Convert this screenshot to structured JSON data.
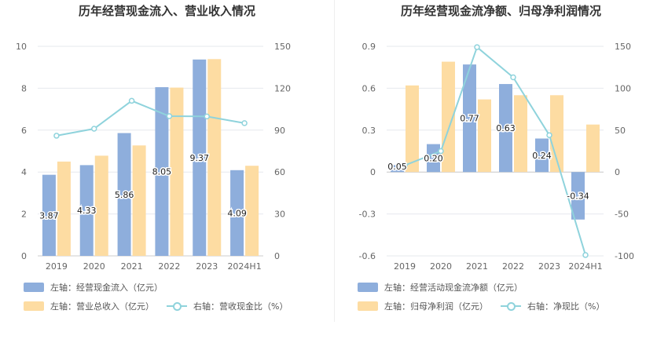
{
  "colors": {
    "bar_blue": "#8eaedc",
    "bar_orange": "#fddca2",
    "line_cyan": "#8fd3dc",
    "grid": "#e6e8ee",
    "axis_text": "#666666"
  },
  "chart_data": [
    {
      "type": "bar+line",
      "title": "历年经营现金流入、营业收入情况",
      "categories": [
        "2019",
        "2020",
        "2021",
        "2022",
        "2023",
        "2024H1"
      ],
      "left_axis": {
        "ticks": [
          "0",
          "2",
          "4",
          "6",
          "8",
          "10"
        ],
        "range": [
          0,
          10
        ]
      },
      "right_axis": {
        "ticks": [
          "0",
          "30",
          "60",
          "90",
          "120",
          "150"
        ],
        "range": [
          0,
          150
        ]
      },
      "series": [
        {
          "name": "左轴：经营现金流入（亿元）",
          "kind": "bar",
          "axis": "left",
          "values": [
            3.87,
            4.33,
            5.86,
            8.05,
            9.37,
            4.09
          ],
          "labels": [
            "3.87",
            "4.33",
            "5.86",
            "8.05",
            "9.37",
            "4.09"
          ]
        },
        {
          "name": "左轴：营业总收入（亿元）",
          "kind": "bar",
          "axis": "left",
          "values": [
            4.5,
            4.78,
            5.27,
            8.03,
            9.39,
            4.3
          ]
        },
        {
          "name": "右轴：营收现金比（%）",
          "kind": "line",
          "axis": "right",
          "values": [
            86,
            91,
            111,
            100,
            99.8,
            95
          ]
        }
      ]
    },
    {
      "type": "bar+line",
      "title": "历年经营现金流净额、归母净利润情况",
      "categories": [
        "2019",
        "2020",
        "2021",
        "2022",
        "2023",
        "2024H1"
      ],
      "left_axis": {
        "ticks": [
          "-0.6",
          "-0.3",
          "0",
          "0.3",
          "0.6",
          "0.9"
        ],
        "range": [
          -0.6,
          0.9
        ]
      },
      "right_axis": {
        "ticks": [
          "-100",
          "-50",
          "0",
          "50",
          "100",
          "150"
        ],
        "range": [
          -100,
          150
        ]
      },
      "series": [
        {
          "name": "左轴：经营活动现金流净额（亿元）",
          "kind": "bar",
          "axis": "left",
          "values": [
            0.05,
            0.2,
            0.77,
            0.63,
            0.24,
            -0.34
          ],
          "labels": [
            "0.05",
            "0.20",
            "0.77",
            "0.63",
            "0.24",
            "-0.34"
          ]
        },
        {
          "name": "左轴：归母净利润（亿元）",
          "kind": "bar",
          "axis": "left",
          "values": [
            0.62,
            0.79,
            0.52,
            0.55,
            0.55,
            0.34
          ]
        },
        {
          "name": "右轴：净现比（%）",
          "kind": "line",
          "axis": "right",
          "values": [
            8,
            25,
            149,
            113,
            44,
            -99
          ]
        }
      ]
    }
  ]
}
